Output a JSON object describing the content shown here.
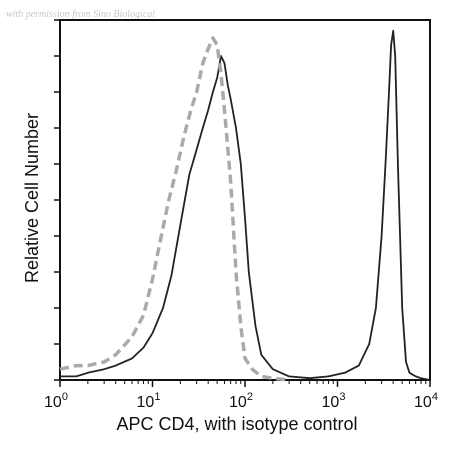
{
  "chart_data": {
    "type": "line",
    "watermark": "with permission from Sino Biological",
    "xlabel": "APC CD4, with isotype control",
    "ylabel": "Relative Cell Number",
    "xscale": "log",
    "xlim": [
      1,
      10000
    ],
    "ylim": [
      0,
      100
    ],
    "x_ticks": [
      {
        "value": 1,
        "base": "10",
        "exp": "0"
      },
      {
        "value": 10,
        "base": "10",
        "exp": "1"
      },
      {
        "value": 100,
        "base": "10",
        "exp": "2"
      },
      {
        "value": 1000,
        "base": "10",
        "exp": "3"
      },
      {
        "value": 10000,
        "base": "10",
        "exp": "4"
      }
    ],
    "series": [
      {
        "style": "solid",
        "color": "#222222",
        "x": [
          1,
          1.5,
          2,
          3,
          4,
          6,
          8,
          10,
          13,
          16,
          20,
          25,
          30,
          35,
          40,
          45,
          50,
          55,
          60,
          65,
          70,
          80,
          90,
          100,
          110,
          130,
          150,
          200,
          300,
          500,
          800,
          1200,
          1700,
          2200,
          2600,
          3000,
          3300,
          3600,
          3800,
          4000,
          4200,
          4500,
          5000,
          5500,
          6000,
          7000,
          8000,
          10000
        ],
        "y": [
          1,
          1,
          2,
          3,
          4,
          6,
          9,
          13,
          20,
          29,
          43,
          57,
          64,
          70,
          75,
          80,
          84,
          90,
          88,
          82,
          78,
          70,
          60,
          45,
          30,
          15,
          7,
          3,
          1,
          0.5,
          1,
          2,
          4,
          10,
          20,
          40,
          60,
          80,
          93,
          97,
          90,
          60,
          20,
          5,
          2,
          1,
          0.5,
          0
        ]
      },
      {
        "style": "dashed",
        "color": "#aaaaaa",
        "x": [
          1,
          1.5,
          2,
          3,
          4,
          6,
          8,
          10,
          12,
          15,
          18,
          22,
          26,
          30,
          35,
          40,
          45,
          50,
          55,
          60,
          70,
          80,
          90,
          100,
          120,
          150,
          200,
          300
        ],
        "y": [
          3,
          4,
          4,
          5,
          7,
          12,
          18,
          28,
          38,
          50,
          58,
          68,
          75,
          80,
          88,
          92,
          95,
          93,
          85,
          75,
          55,
          30,
          15,
          6,
          3,
          1,
          0.5,
          0
        ]
      }
    ]
  }
}
